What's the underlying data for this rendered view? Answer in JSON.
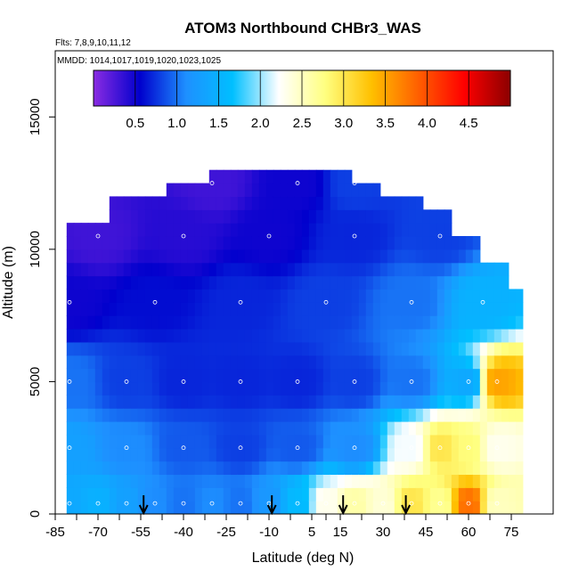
{
  "chart_data": {
    "type": "heatmap",
    "title": "ATOM3 Northbound CHBr3_WAS",
    "flights_label": "Flts: 7,8,9,10,11,12",
    "dates_label": "MMDD: 1014,1017,1019,1020,1023,1025",
    "xlabel": "Latitude (deg N)",
    "ylabel": "Altitude (m)",
    "xlim": [
      -85,
      90
    ],
    "ylim": [
      0,
      17500
    ],
    "x_ticks": [
      -85,
      -70,
      -55,
      -40,
      -25,
      -10,
      5,
      15,
      30,
      45,
      60,
      75
    ],
    "x_tick_labels": [
      "-85",
      "-70",
      "-55",
      "-40",
      "-25",
      "-10",
      "5",
      "15",
      "30",
      "45",
      "60",
      "75"
    ],
    "y_ticks": [
      0,
      5000,
      10000,
      15000
    ],
    "y_tick_labels": [
      "0",
      "5000",
      "10000",
      "15000"
    ],
    "colorbar": {
      "min": 0,
      "max": 5,
      "ticks": [
        0.5,
        1.0,
        1.5,
        2.0,
        2.5,
        3.0,
        3.5,
        4.0,
        4.5
      ],
      "tick_labels": [
        "0.5",
        "1.0",
        "1.5",
        "2.0",
        "2.5",
        "3.0",
        "3.5",
        "4.0",
        "4.5"
      ],
      "colors": [
        "#8a2be2",
        "#0000cd",
        "#1e90ff",
        "#00bfff",
        "#ffffff",
        "#ffff80",
        "#ffc000",
        "#ff6000",
        "#ff0000",
        "#8b0000"
      ]
    },
    "arrows_latitude": [
      -54,
      -9,
      16,
      38
    ],
    "samples": [
      {
        "lat": -80,
        "alt": 400,
        "value": 1.4
      },
      {
        "lat": -70,
        "alt": 400,
        "value": 1.5
      },
      {
        "lat": -60,
        "alt": 400,
        "value": 1.3
      },
      {
        "lat": -50,
        "alt": 400,
        "value": 1.1
      },
      {
        "lat": -40,
        "alt": 400,
        "value": 1.0
      },
      {
        "lat": -30,
        "alt": 400,
        "value": 1.1
      },
      {
        "lat": -20,
        "alt": 400,
        "value": 1.0
      },
      {
        "lat": -10,
        "alt": 400,
        "value": 1.2
      },
      {
        "lat": 0,
        "alt": 400,
        "value": 1.6
      },
      {
        "lat": 10,
        "alt": 400,
        "value": 2.3
      },
      {
        "lat": 20,
        "alt": 400,
        "value": 2.6
      },
      {
        "lat": 30,
        "alt": 400,
        "value": 2.4
      },
      {
        "lat": 40,
        "alt": 400,
        "value": 3.0
      },
      {
        "lat": 50,
        "alt": 400,
        "value": 2.7
      },
      {
        "lat": 60,
        "alt": 400,
        "value": 3.8
      },
      {
        "lat": 70,
        "alt": 400,
        "value": 2.5
      },
      {
        "lat": -80,
        "alt": 2500,
        "value": 1.3
      },
      {
        "lat": -60,
        "alt": 2500,
        "value": 1.1
      },
      {
        "lat": -40,
        "alt": 2500,
        "value": 0.9
      },
      {
        "lat": -20,
        "alt": 2500,
        "value": 0.8
      },
      {
        "lat": 0,
        "alt": 2500,
        "value": 0.9
      },
      {
        "lat": 20,
        "alt": 2500,
        "value": 1.1
      },
      {
        "lat": 40,
        "alt": 2500,
        "value": 2.2
      },
      {
        "lat": 50,
        "alt": 2500,
        "value": 3.0
      },
      {
        "lat": 60,
        "alt": 2500,
        "value": 2.8
      },
      {
        "lat": 70,
        "alt": 2500,
        "value": 2.3
      },
      {
        "lat": -80,
        "alt": 5000,
        "value": 1.0
      },
      {
        "lat": -60,
        "alt": 5000,
        "value": 0.8
      },
      {
        "lat": -40,
        "alt": 5000,
        "value": 0.7
      },
      {
        "lat": -20,
        "alt": 5000,
        "value": 0.7
      },
      {
        "lat": 0,
        "alt": 5000,
        "value": 0.7
      },
      {
        "lat": 20,
        "alt": 5000,
        "value": 0.8
      },
      {
        "lat": 40,
        "alt": 5000,
        "value": 1.0
      },
      {
        "lat": 60,
        "alt": 5000,
        "value": 1.4
      },
      {
        "lat": 70,
        "alt": 5000,
        "value": 3.5
      },
      {
        "lat": -80,
        "alt": 8000,
        "value": 0.5
      },
      {
        "lat": -50,
        "alt": 8000,
        "value": 0.6
      },
      {
        "lat": -20,
        "alt": 8000,
        "value": 0.7
      },
      {
        "lat": 10,
        "alt": 8000,
        "value": 0.8
      },
      {
        "lat": 40,
        "alt": 8000,
        "value": 1.0
      },
      {
        "lat": 65,
        "alt": 8000,
        "value": 1.5
      },
      {
        "lat": -70,
        "alt": 10500,
        "value": 0.3
      },
      {
        "lat": -40,
        "alt": 10500,
        "value": 0.4
      },
      {
        "lat": -10,
        "alt": 10500,
        "value": 0.5
      },
      {
        "lat": 20,
        "alt": 10500,
        "value": 0.7
      },
      {
        "lat": 50,
        "alt": 10500,
        "value": 0.8
      },
      {
        "lat": -30,
        "alt": 12500,
        "value": 0.3
      },
      {
        "lat": 0,
        "alt": 12500,
        "value": 0.5
      },
      {
        "lat": 20,
        "alt": 12500,
        "value": 0.8
      }
    ]
  }
}
